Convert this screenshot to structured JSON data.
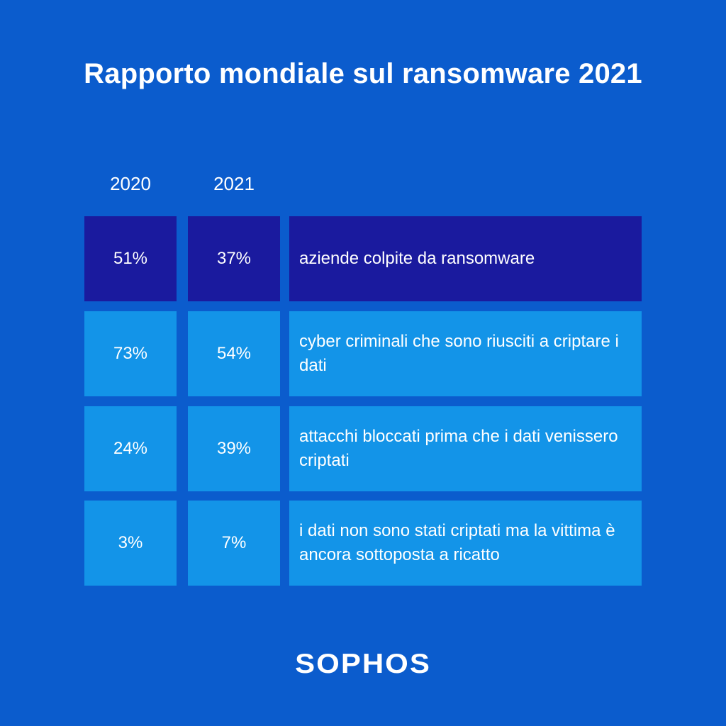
{
  "title": "Rapporto mondiale sul ransomware 2021",
  "brand": "SOPHOS",
  "colors": {
    "background": "#0b5ccd",
    "row_highlight": "#1a1a9e",
    "row": "#1394e8",
    "text": "#ffffff"
  },
  "chart_data": {
    "type": "table",
    "title": "Rapporto mondiale sul ransomware 2021",
    "columns": [
      "2020",
      "2021"
    ],
    "rows": [
      {
        "v2020": "51%",
        "v2021": "37%",
        "label": "aziende colpite da ransomware"
      },
      {
        "v2020": "73%",
        "v2021": "54%",
        "label": "cyber criminali che sono riusciti a criptare i dati"
      },
      {
        "v2020": "24%",
        "v2021": "39%",
        "label": "attacchi bloccati prima che i dati venissero criptati"
      },
      {
        "v2020": "3%",
        "v2021": "7%",
        "label": "i dati non sono stati criptati ma la vittima è ancora sottoposta a ricatto"
      }
    ]
  }
}
